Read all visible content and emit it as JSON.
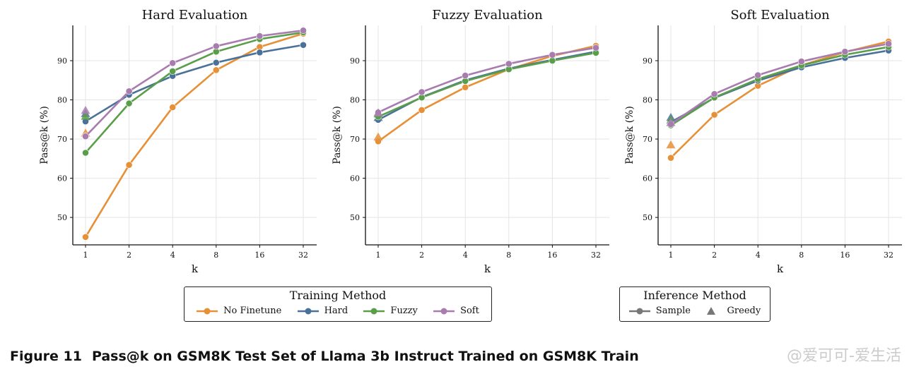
{
  "chart_data": [
    {
      "type": "line",
      "title": "Hard Evaluation",
      "xlabel": "k",
      "ylabel": "Pass@k (%)",
      "x": [
        1,
        2,
        4,
        8,
        16,
        32
      ],
      "x_tick_labels": [
        "1",
        "2",
        "4",
        "8",
        "16",
        "32"
      ],
      "x_scale": "log2",
      "y_ticks": [
        50,
        60,
        70,
        80,
        90
      ],
      "ylim": [
        43,
        99
      ],
      "grid": true,
      "series": [
        {
          "name": "No Finetune",
          "color": "#E69138",
          "values": [
            45.0,
            63.4,
            78.1,
            87.6,
            93.5,
            96.9
          ],
          "greedy": 71.5
        },
        {
          "name": "Hard",
          "color": "#4A7299",
          "values": [
            74.5,
            81.3,
            86.1,
            89.5,
            92.1,
            94.0
          ],
          "greedy": 76.5
        },
        {
          "name": "Fuzzy",
          "color": "#5A9E4A",
          "values": [
            66.5,
            79.1,
            87.3,
            92.3,
            95.5,
            97.2
          ],
          "greedy": 75.8
        },
        {
          "name": "Soft",
          "color": "#A97CB0",
          "values": [
            70.7,
            82.2,
            89.4,
            93.7,
            96.3,
            97.7
          ],
          "greedy": 77.3
        }
      ]
    },
    {
      "type": "line",
      "title": "Fuzzy Evaluation",
      "xlabel": "k",
      "ylabel": "Pass@k (%)",
      "x": [
        1,
        2,
        4,
        8,
        16,
        32
      ],
      "x_tick_labels": [
        "1",
        "2",
        "4",
        "8",
        "16",
        "32"
      ],
      "x_scale": "log2",
      "y_ticks": [
        50,
        60,
        70,
        80,
        90
      ],
      "ylim": [
        43,
        99
      ],
      "grid": true,
      "series": [
        {
          "name": "No Finetune",
          "color": "#E69138",
          "values": [
            69.4,
            77.4,
            83.2,
            87.8,
            91.2,
            93.8
          ],
          "greedy": 70.5
        },
        {
          "name": "Hard",
          "color": "#4A7299",
          "values": [
            74.9,
            80.7,
            85.0,
            88.0,
            90.2,
            92.3
          ],
          "greedy": 75.5
        },
        {
          "name": "Fuzzy",
          "color": "#5A9E4A",
          "values": [
            75.7,
            80.6,
            84.8,
            87.8,
            90.0,
            92.0
          ],
          "greedy": 76.4
        },
        {
          "name": "Soft",
          "color": "#A97CB0",
          "values": [
            76.8,
            82.0,
            86.2,
            89.2,
            91.5,
            93.3
          ],
          "greedy": 76.7
        }
      ]
    },
    {
      "type": "line",
      "title": "Soft Evaluation",
      "xlabel": "k",
      "ylabel": "Pass@k (%)",
      "x": [
        1,
        2,
        4,
        8,
        16,
        32
      ],
      "x_tick_labels": [
        "1",
        "2",
        "4",
        "8",
        "16",
        "32"
      ],
      "x_scale": "log2",
      "y_ticks": [
        50,
        60,
        70,
        80,
        90
      ],
      "ylim": [
        43,
        99
      ],
      "grid": true,
      "series": [
        {
          "name": "No Finetune",
          "color": "#E69138",
          "values": [
            65.2,
            76.2,
            83.6,
            88.8,
            92.2,
            94.9
          ],
          "greedy": 68.5
        },
        {
          "name": "Hard",
          "color": "#4A7299",
          "values": [
            74.3,
            80.5,
            84.9,
            88.3,
            90.7,
            92.6
          ],
          "greedy": 75.5
        },
        {
          "name": "Fuzzy",
          "color": "#5A9E4A",
          "values": [
            73.5,
            80.6,
            85.3,
            88.8,
            91.5,
            93.5
          ],
          "greedy": 74.8
        },
        {
          "name": "Soft",
          "color": "#A97CB0",
          "values": [
            73.8,
            81.5,
            86.3,
            89.8,
            92.3,
            94.3
          ],
          "greedy": 74.2
        }
      ]
    }
  ],
  "legend_training": {
    "title": "Training Method",
    "items": [
      {
        "label": "No Finetune",
        "color": "#E69138"
      },
      {
        "label": "Hard",
        "color": "#4A7299"
      },
      {
        "label": "Fuzzy",
        "color": "#5A9E4A"
      },
      {
        "label": "Soft",
        "color": "#A97CB0"
      }
    ]
  },
  "legend_inference": {
    "title": "Inference Method",
    "items": [
      {
        "label": "Sample",
        "marker": "circle-line",
        "color": "#777777"
      },
      {
        "label": "Greedy",
        "marker": "triangle",
        "color": "#777777"
      }
    ]
  },
  "caption": {
    "number": "Figure 11",
    "text": "Pass@k on GSM8K Test Set of Llama 3b Instruct Trained on GSM8K Train"
  },
  "watermark": "@爱可可-爱生活"
}
